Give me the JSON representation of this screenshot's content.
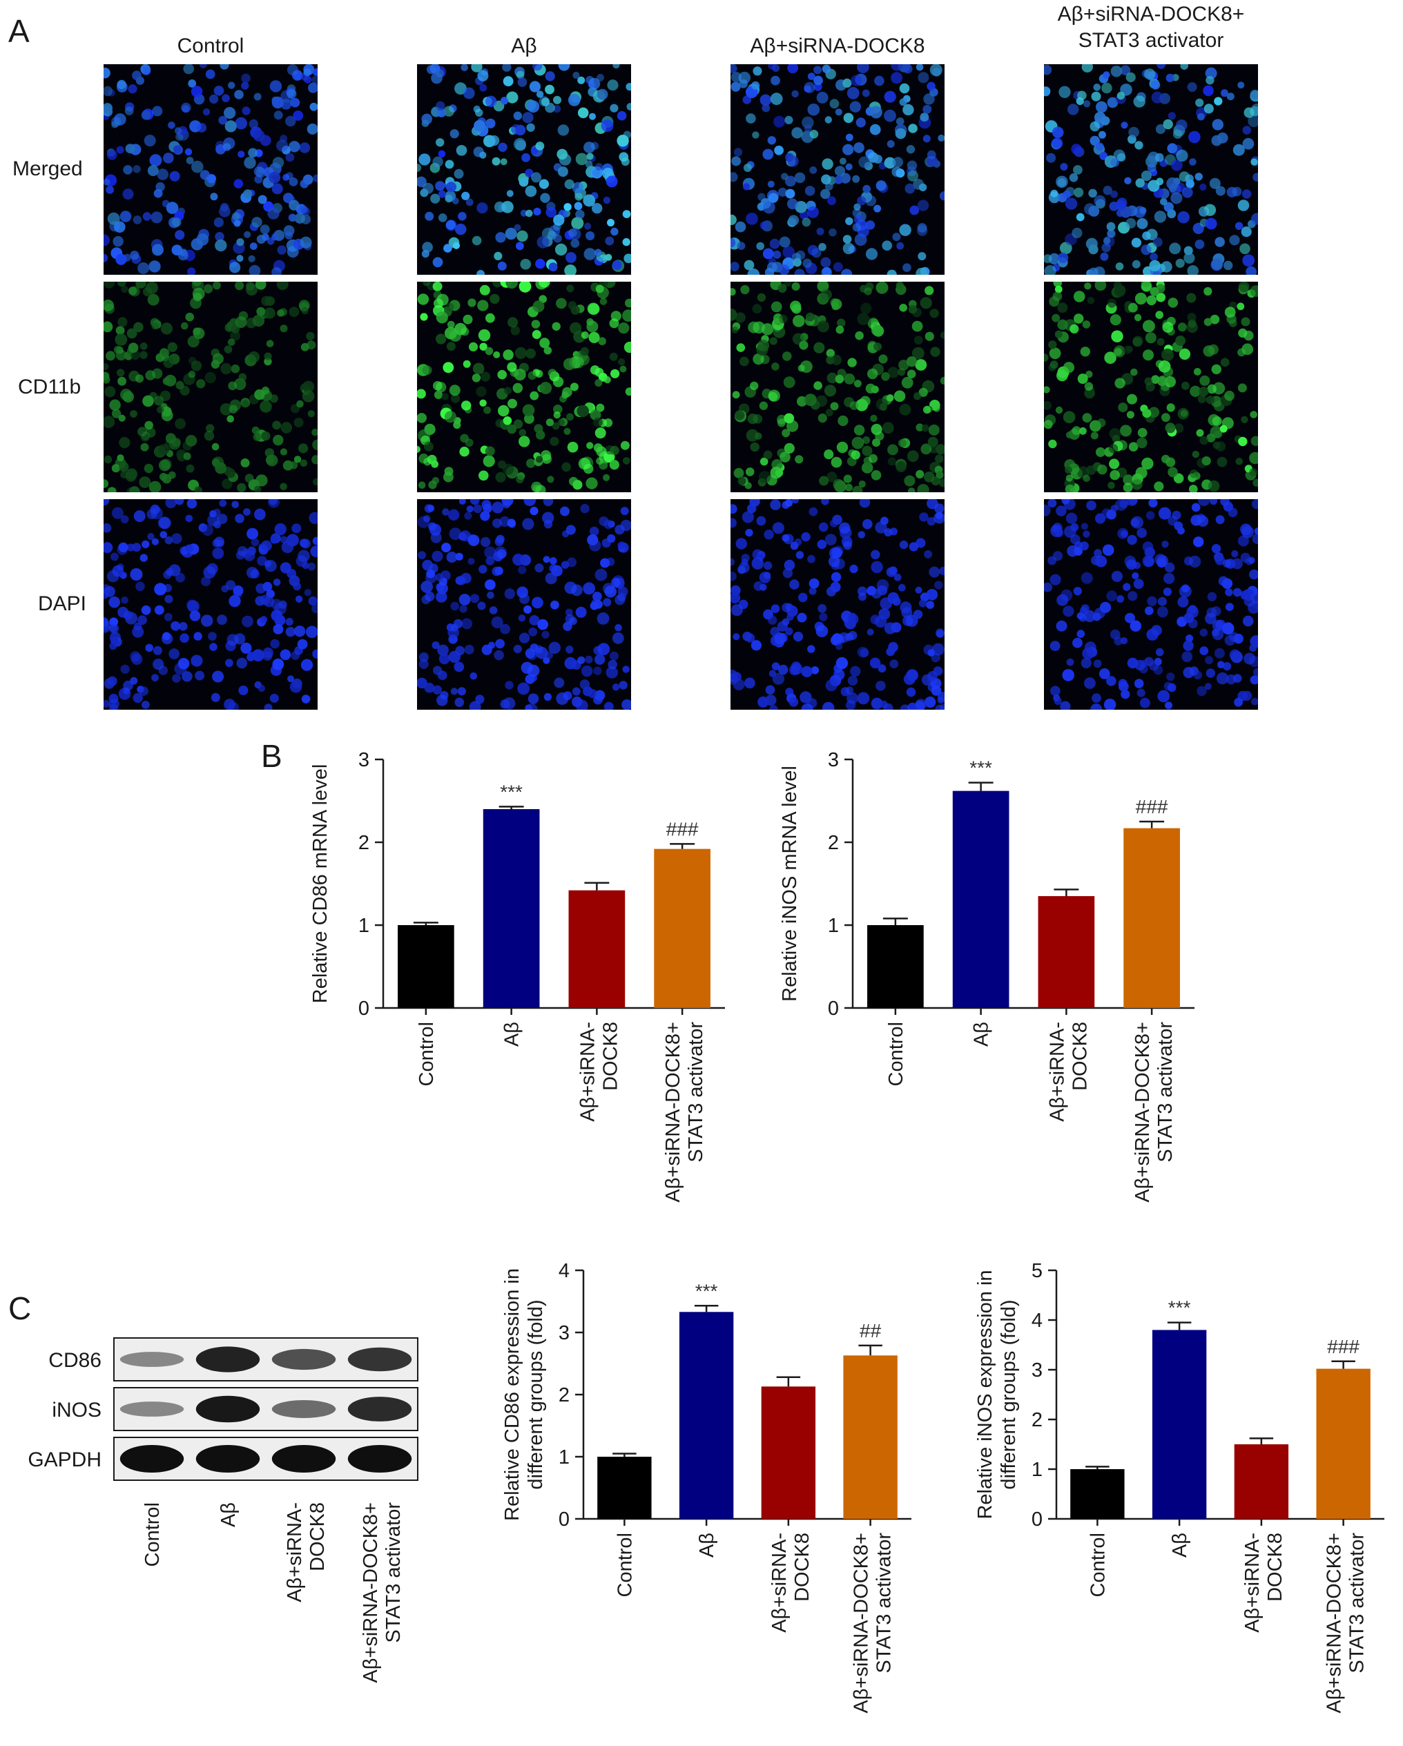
{
  "panel_labels": {
    "a": "A",
    "b": "B",
    "c": "C"
  },
  "panel_a": {
    "columns": [
      "Control",
      "Aβ",
      "Aβ+siRNA-DOCK8",
      "Aβ+siRNA-DOCK8+\nSTAT3 activator"
    ],
    "rows": [
      "Merged",
      "CD11b",
      "DAPI"
    ]
  },
  "colors": {
    "control": "#000000",
    "abeta": "#000080",
    "sirna": "#990000",
    "activator": "#cc6600"
  },
  "chart_data": [
    {
      "type": "bar",
      "panel": "B",
      "categories": [
        "Control",
        "Aβ",
        "Aβ+siRNA-\nDOCK8",
        "Aβ+siRNA-DOCK8+\nSTAT3 activator"
      ],
      "values": [
        1.0,
        2.4,
        1.42,
        1.92
      ],
      "errors": [
        0.03,
        0.03,
        0.09,
        0.06
      ],
      "annotations": [
        "",
        "***",
        "",
        "###"
      ],
      "ylabel": "Relative CD86 mRNA level",
      "ylim": [
        0,
        3
      ],
      "yticks": [
        0,
        1,
        2,
        3
      ]
    },
    {
      "type": "bar",
      "panel": "B",
      "categories": [
        "Control",
        "Aβ",
        "Aβ+siRNA-\nDOCK8",
        "Aβ+siRNA-DOCK8+\nSTAT3 activator"
      ],
      "values": [
        1.0,
        2.62,
        1.35,
        2.17
      ],
      "errors": [
        0.08,
        0.1,
        0.08,
        0.08
      ],
      "annotations": [
        "",
        "***",
        "",
        "###"
      ],
      "ylabel": "Relative iNOS mRNA level",
      "ylim": [
        0,
        3
      ],
      "yticks": [
        0,
        1,
        2,
        3
      ]
    },
    {
      "type": "bar",
      "panel": "C",
      "categories": [
        "Control",
        "Aβ",
        "Aβ+siRNA-\nDOCK8",
        "Aβ+siRNA-DOCK8+\nSTAT3 activator"
      ],
      "values": [
        1.0,
        3.33,
        2.13,
        2.63
      ],
      "errors": [
        0.05,
        0.1,
        0.15,
        0.16
      ],
      "annotations": [
        "",
        "***",
        "",
        "##"
      ],
      "ylabel": "Relative CD86 expression in\ndifferent groups (fold)",
      "ylim": [
        0,
        4
      ],
      "yticks": [
        0,
        1,
        2,
        3,
        4
      ]
    },
    {
      "type": "bar",
      "panel": "C",
      "categories": [
        "Control",
        "Aβ",
        "Aβ+siRNA-\nDOCK8",
        "Aβ+siRNA-DOCK8+\nSTAT3 activator"
      ],
      "values": [
        1.0,
        3.8,
        1.5,
        3.02
      ],
      "errors": [
        0.05,
        0.15,
        0.12,
        0.15
      ],
      "annotations": [
        "",
        "***",
        "",
        "###"
      ],
      "ylabel": "Relative iNOS expression in\ndifferent groups (fold)",
      "ylim": [
        0,
        5
      ],
      "yticks": [
        0,
        1,
        2,
        3,
        4,
        5
      ]
    }
  ],
  "blot": {
    "rows": [
      "CD86",
      "iNOS",
      "GAPDH"
    ],
    "intensity": [
      [
        0.35,
        0.9,
        0.65,
        0.8
      ],
      [
        0.35,
        0.95,
        0.5,
        0.85
      ],
      [
        1.0,
        1.0,
        1.0,
        1.0
      ]
    ],
    "lanes": [
      "Control",
      "Aβ",
      "Aβ+siRNA-\nDOCK8",
      "Aβ+siRNA-DOCK8+\nSTAT3 activator"
    ]
  }
}
